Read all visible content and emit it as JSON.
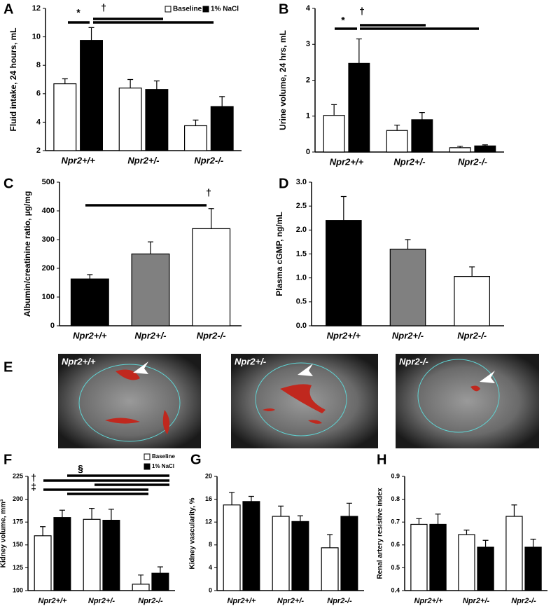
{
  "chart_data": [
    {
      "type": "bar",
      "panel": "A",
      "ylabel": "Fluid intake, 24 hours, mL",
      "categories": [
        "Npr2+/+",
        "Npr2+/-",
        "Npr2-/-"
      ],
      "series": [
        {
          "name": "Baseline",
          "color": "#ffffff",
          "values": [
            6.7,
            6.4,
            3.75
          ],
          "errors": [
            0.35,
            0.6,
            0.4
          ]
        },
        {
          "name": "1% NaCl",
          "color": "#000000",
          "values": [
            9.75,
            6.3,
            5.1
          ],
          "errors": [
            0.9,
            0.6,
            0.7
          ]
        }
      ],
      "ylim": [
        2,
        12
      ],
      "yticks": [
        2,
        4,
        6,
        8,
        10,
        12
      ],
      "annotations": [
        "*",
        "†"
      ]
    },
    {
      "type": "bar",
      "panel": "B",
      "ylabel": "Urine volume, 24 hrs, mL",
      "categories": [
        "Npr2+/+",
        "Npr2+/-",
        "Npr2-/-"
      ],
      "series": [
        {
          "color": "#ffffff",
          "values": [
            1.02,
            0.6,
            0.12
          ],
          "errors": [
            0.3,
            0.15,
            0.04
          ]
        },
        {
          "color": "#000000",
          "values": [
            2.47,
            0.9,
            0.17
          ],
          "errors": [
            0.68,
            0.2,
            0.03
          ]
        }
      ],
      "ylim": [
        0,
        4
      ],
      "yticks": [
        0,
        1,
        2,
        3,
        4
      ],
      "annotations": [
        "*",
        "†"
      ]
    },
    {
      "type": "bar",
      "panel": "C",
      "ylabel": "Albumin/creatinine ratio, µg/mg",
      "categories": [
        "Npr2+/+",
        "Npr2+/-",
        "Npr2-/-"
      ],
      "series": [
        {
          "colors": [
            "#000000",
            "#808080",
            "#ffffff"
          ],
          "values": [
            163,
            250,
            338
          ],
          "errors": [
            15,
            42,
            70
          ]
        }
      ],
      "ylim": [
        0,
        500
      ],
      "yticks": [
        0,
        100,
        200,
        300,
        400,
        500
      ],
      "annotations": [
        "†"
      ]
    },
    {
      "type": "bar",
      "panel": "D",
      "ylabel": "Plasma cGMP, ng/mL",
      "categories": [
        "Npr2+/+",
        "Npr2+/-",
        "Npr2-/-"
      ],
      "series": [
        {
          "colors": [
            "#000000",
            "#808080",
            "#ffffff"
          ],
          "values": [
            2.2,
            1.6,
            1.03
          ],
          "errors": [
            0.5,
            0.2,
            0.2
          ]
        }
      ],
      "ylim": [
        0,
        3
      ],
      "yticks": [
        {
          "value": 0,
          "label": "0.0"
        },
        0.5,
        {
          "value": 1,
          "label": "1.0"
        },
        1.5,
        {
          "value": 2,
          "label": "2.0"
        },
        2.5,
        {
          "value": 3,
          "label": "3.0"
        }
      ]
    },
    {
      "type": "bar",
      "panel": "F",
      "ylabel": "Kidney volume, mm³",
      "categories": [
        "Npr2+/+",
        "Npr2+/-",
        "Npr2-/-"
      ],
      "series": [
        {
          "name": "Baseline",
          "color": "#ffffff",
          "values": [
            160,
            178,
            107
          ],
          "errors": [
            10,
            12,
            10
          ]
        },
        {
          "name": "1% NaCl",
          "color": "#000000",
          "values": [
            180,
            177,
            119
          ],
          "errors": [
            8,
            12,
            7
          ]
        }
      ],
      "ylim": [
        100,
        225
      ],
      "yticks": [
        100,
        125,
        150,
        175,
        200,
        225
      ],
      "annotations": [
        "†",
        "‡",
        "§"
      ]
    },
    {
      "type": "bar",
      "panel": "G",
      "ylabel": "Kidney vascularity, %",
      "categories": [
        "Npr2+/+",
        "Npr2+/-",
        "Npr2-/-"
      ],
      "series": [
        {
          "color": "#ffffff",
          "values": [
            15,
            13,
            7.5
          ],
          "errors": [
            2.2,
            1.8,
            2.3
          ]
        },
        {
          "color": "#000000",
          "values": [
            15.6,
            12.1,
            13
          ],
          "errors": [
            0.9,
            1,
            2.3
          ]
        }
      ],
      "ylim": [
        0,
        20
      ],
      "yticks": [
        0,
        4,
        8,
        12,
        16,
        20
      ]
    },
    {
      "type": "bar",
      "panel": "H",
      "ylabel": "Renal artery resistive index",
      "categories": [
        "Npr2+/+",
        "Npr2+/-",
        "Npr2-/-"
      ],
      "series": [
        {
          "color": "#ffffff",
          "values": [
            0.69,
            0.645,
            0.725
          ],
          "errors": [
            0.025,
            0.02,
            0.05
          ]
        },
        {
          "color": "#000000",
          "values": [
            0.69,
            0.59,
            0.59
          ],
          "errors": [
            0.045,
            0.03,
            0.035
          ]
        }
      ],
      "ylim": [
        0.4,
        0.9
      ],
      "yticks": [
        0.4,
        0.5,
        0.6,
        0.7,
        0.8,
        0.9
      ]
    }
  ],
  "panel_e": {
    "panel": "E",
    "images": [
      {
        "label": "Npr2+/+"
      },
      {
        "label": "Npr2+/-"
      },
      {
        "label": "Npr2-/-"
      }
    ]
  }
}
